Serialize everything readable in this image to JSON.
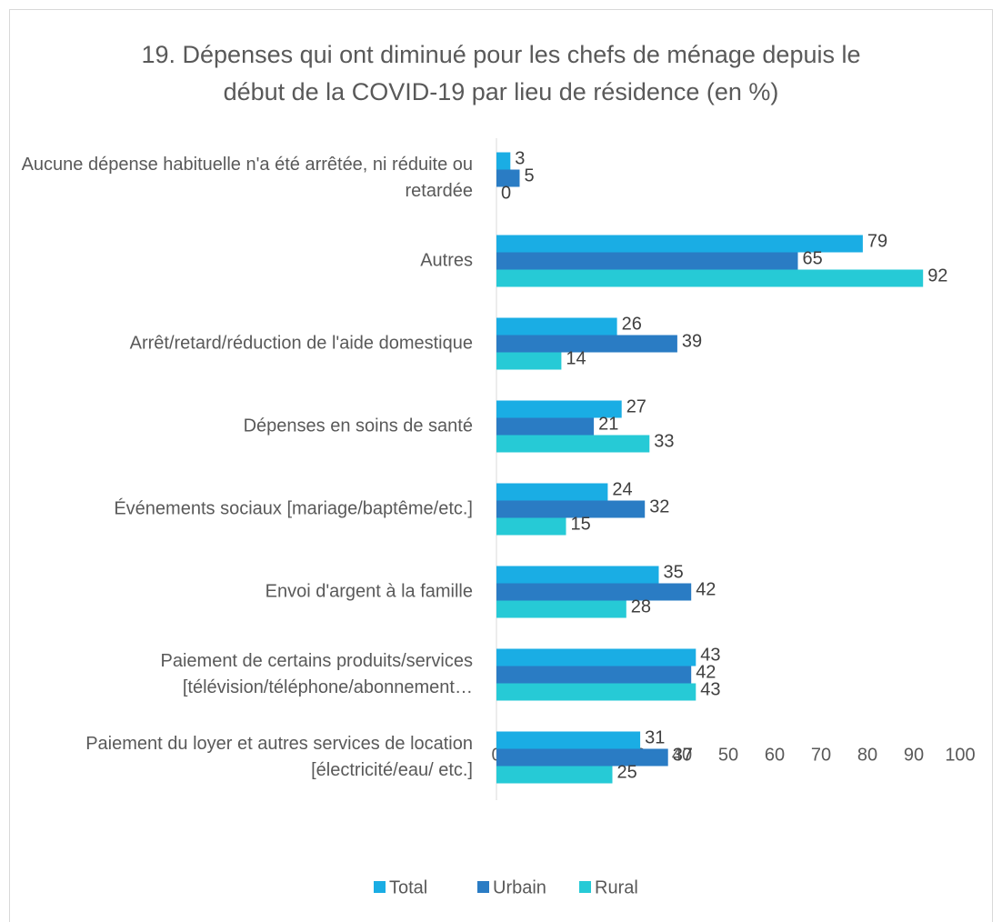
{
  "chart_data": {
    "type": "bar",
    "orientation": "horizontal",
    "title": "19. Dépenses qui ont diminué pour les chefs de ménage depuis le début de la COVID-19 par lieu de résidence (en %)",
    "categories": [
      "Aucune dépense habituelle n'a été arrêtée, ni réduite ou retardée",
      "Autres",
      "Arrêt/retard/réduction de l'aide domestique",
      "Dépenses en soins de santé",
      "Événements sociaux [mariage/baptême/etc.]",
      "Envoi d'argent à la famille",
      "Paiement de certains produits/services [télévision/téléphone/abonnement…",
      "Paiement du loyer et autres services de location [électricité/eau/ etc.]"
    ],
    "series": [
      {
        "name": "Total",
        "color": "#1aade4",
        "values": [
          3,
          79,
          26,
          27,
          24,
          35,
          43,
          31
        ]
      },
      {
        "name": "Urbain",
        "color": "#2a7cc4",
        "values": [
          5,
          65,
          39,
          21,
          32,
          42,
          42,
          37
        ]
      },
      {
        "name": "Rural",
        "color": "#26cad6",
        "values": [
          0,
          92,
          14,
          33,
          15,
          28,
          43,
          25
        ]
      }
    ],
    "xlim": [
      0,
      100
    ],
    "xticks": [
      0,
      10,
      20,
      30,
      40,
      50,
      60,
      70,
      80,
      90,
      100
    ],
    "legend": "bottom"
  }
}
